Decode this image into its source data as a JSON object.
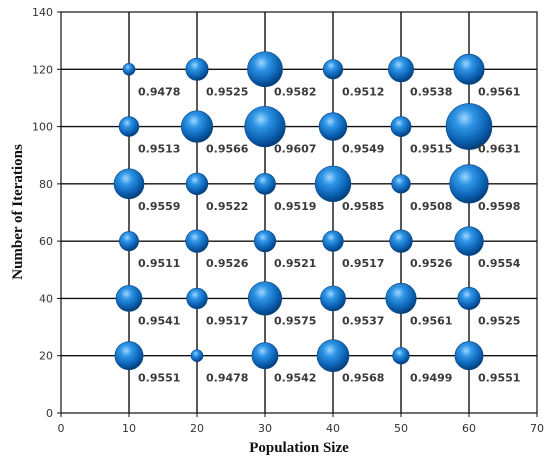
{
  "chart_data": {
    "type": "scatter",
    "title": "",
    "xlabel": "Population Size",
    "ylabel": "Number of Iterations",
    "xlim": [
      0,
      70
    ],
    "ylim": [
      0,
      140
    ],
    "xticks": [
      0,
      10,
      20,
      30,
      40,
      50,
      60,
      70
    ],
    "yticks": [
      0,
      20,
      40,
      60,
      80,
      100,
      120,
      140
    ],
    "grid": true,
    "bubble_color": "#1a7fd4",
    "size_metric_range": [
      0.9478,
      0.9631
    ],
    "points": [
      {
        "x": 10,
        "y": 120,
        "value": 0.9478,
        "label": "0.9478"
      },
      {
        "x": 20,
        "y": 120,
        "value": 0.9525,
        "label": "0.9525"
      },
      {
        "x": 30,
        "y": 120,
        "value": 0.9582,
        "label": "0.9582"
      },
      {
        "x": 40,
        "y": 120,
        "value": 0.9512,
        "label": "0.9512"
      },
      {
        "x": 50,
        "y": 120,
        "value": 0.9538,
        "label": "0.9538"
      },
      {
        "x": 60,
        "y": 120,
        "value": 0.9561,
        "label": "0.9561"
      },
      {
        "x": 10,
        "y": 100,
        "value": 0.9513,
        "label": "0.9513"
      },
      {
        "x": 20,
        "y": 100,
        "value": 0.9566,
        "label": "0.9566"
      },
      {
        "x": 30,
        "y": 100,
        "value": 0.9607,
        "label": "0.9607"
      },
      {
        "x": 40,
        "y": 100,
        "value": 0.9549,
        "label": "0.9549"
      },
      {
        "x": 50,
        "y": 100,
        "value": 0.9515,
        "label": "0.9515"
      },
      {
        "x": 60,
        "y": 100,
        "value": 0.9631,
        "label": "0.9631"
      },
      {
        "x": 10,
        "y": 80,
        "value": 0.9559,
        "label": "0.9559"
      },
      {
        "x": 20,
        "y": 80,
        "value": 0.9522,
        "label": "0.9522"
      },
      {
        "x": 30,
        "y": 80,
        "value": 0.9519,
        "label": "0.9519"
      },
      {
        "x": 40,
        "y": 80,
        "value": 0.9585,
        "label": "0.9585"
      },
      {
        "x": 50,
        "y": 80,
        "value": 0.9508,
        "label": "0.9508"
      },
      {
        "x": 60,
        "y": 80,
        "value": 0.9598,
        "label": "0.9598"
      },
      {
        "x": 10,
        "y": 60,
        "value": 0.9511,
        "label": "0.9511"
      },
      {
        "x": 20,
        "y": 60,
        "value": 0.9526,
        "label": "0.9526"
      },
      {
        "x": 30,
        "y": 60,
        "value": 0.9521,
        "label": "0.9521"
      },
      {
        "x": 40,
        "y": 60,
        "value": 0.9517,
        "label": "0.9517"
      },
      {
        "x": 50,
        "y": 60,
        "value": 0.9526,
        "label": "0.9526"
      },
      {
        "x": 60,
        "y": 60,
        "value": 0.9554,
        "label": "0.9554"
      },
      {
        "x": 10,
        "y": 40,
        "value": 0.9541,
        "label": "0.9541"
      },
      {
        "x": 20,
        "y": 40,
        "value": 0.9517,
        "label": "0.9517"
      },
      {
        "x": 30,
        "y": 40,
        "value": 0.9575,
        "label": "0.9575"
      },
      {
        "x": 40,
        "y": 40,
        "value": 0.9537,
        "label": "0.9537"
      },
      {
        "x": 50,
        "y": 40,
        "value": 0.9561,
        "label": "0.9561"
      },
      {
        "x": 60,
        "y": 40,
        "value": 0.9525,
        "label": "0.9525"
      },
      {
        "x": 10,
        "y": 20,
        "value": 0.9551,
        "label": "0.9551"
      },
      {
        "x": 20,
        "y": 20,
        "value": 0.9478,
        "label": "0.9478"
      },
      {
        "x": 30,
        "y": 20,
        "value": 0.9542,
        "label": "0.9542"
      },
      {
        "x": 40,
        "y": 20,
        "value": 0.9568,
        "label": "0.9568"
      },
      {
        "x": 50,
        "y": 20,
        "value": 0.9499,
        "label": "0.9499"
      },
      {
        "x": 60,
        "y": 20,
        "value": 0.9551,
        "label": "0.9551"
      }
    ]
  }
}
